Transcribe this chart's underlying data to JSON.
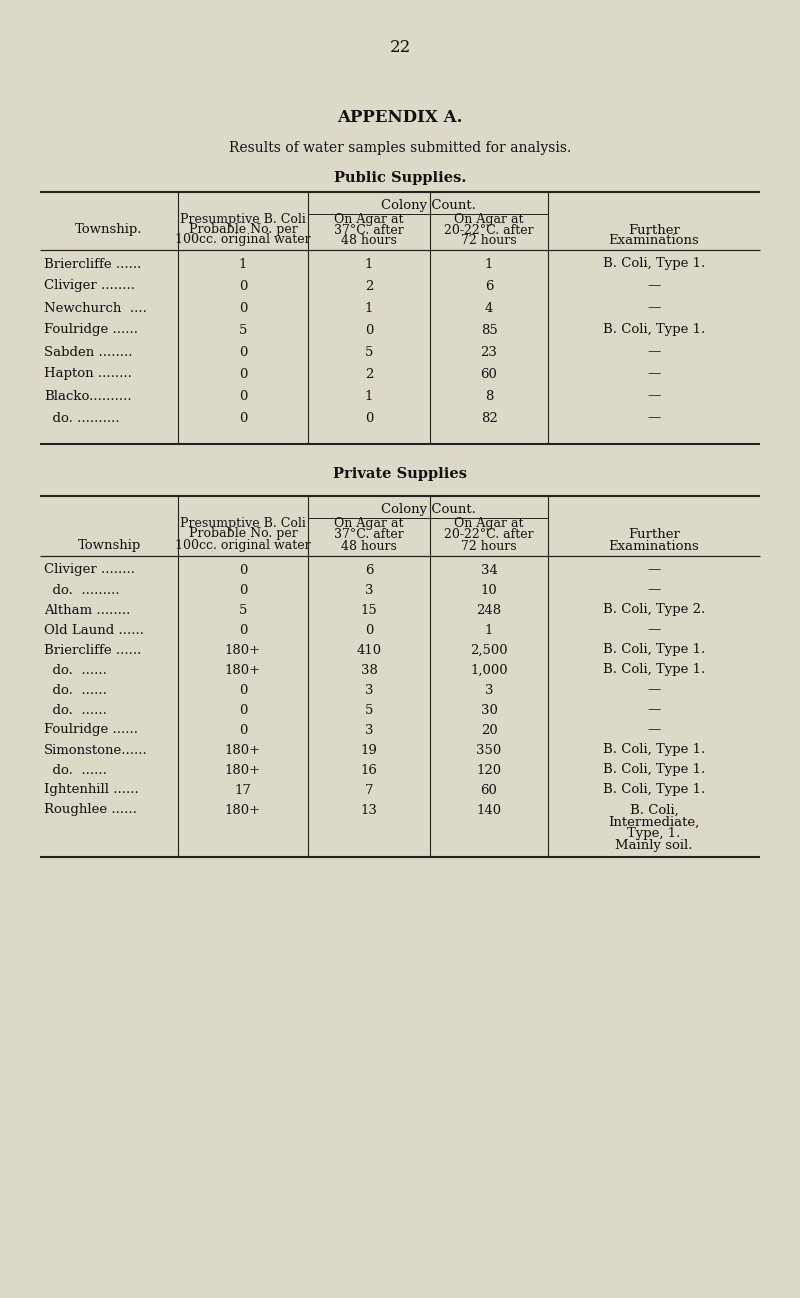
{
  "page_number": "22",
  "title": "APPENDIX A.",
  "subtitle": "Results of water samples submitted for analysis.",
  "section1_title": "Public Supplies.",
  "section2_title": "Private Supplies",
  "bg_color": "#ddd9c8",
  "public_rows": [
    [
      "Briercliffe ......",
      "1",
      "1",
      "1",
      "B. Coli, Type 1."
    ],
    [
      "Cliviger ........",
      "0",
      "2",
      "6",
      "—"
    ],
    [
      "Newchurch  ....",
      "0",
      "1",
      "4",
      "—"
    ],
    [
      "Foulridge ......",
      "5",
      "0",
      "85",
      "B. Coli, Type 1."
    ],
    [
      "Sabden ........",
      "0",
      "5",
      "23",
      "—"
    ],
    [
      "Hapton ........",
      "0",
      "2",
      "60",
      "—"
    ],
    [
      "Blacko..........",
      "0",
      "1",
      "8",
      "—"
    ],
    [
      "  do. ..........",
      "0",
      "0",
      "82",
      "—"
    ]
  ],
  "private_rows": [
    [
      "Cliviger ........",
      "0",
      "6",
      "34",
      "—"
    ],
    [
      "  do.  .........",
      "0",
      "3",
      "10",
      "—"
    ],
    [
      "Altham ........",
      "5",
      "15",
      "248",
      "B. Coli, Type 2."
    ],
    [
      "Old Laund ......",
      "0",
      "0",
      "1",
      "—"
    ],
    [
      "Briercliffe ......",
      "180+",
      "410",
      "2,500",
      "B. Coli, Type 1."
    ],
    [
      "  do.  ......",
      "180+",
      "38",
      "1,000",
      "B. Coli, Type 1."
    ],
    [
      "  do.  ......",
      "0",
      "3",
      "3",
      "—"
    ],
    [
      "  do.  ......",
      "0",
      "5",
      "30",
      "—"
    ],
    [
      "Foulridge ......",
      "0",
      "3",
      "20",
      "—"
    ],
    [
      "Simonstone......",
      "180+",
      "19",
      "350",
      "B. Coli, Type 1."
    ],
    [
      "  do.  ......",
      "180+",
      "16",
      "120",
      "B. Coli, Type 1."
    ],
    [
      "Ightenhill ......",
      "17",
      "7",
      "60",
      "B. Coli, Type 1."
    ],
    [
      "Roughlee ......",
      "180+",
      "13",
      "140",
      "B. Coli,\nIntermediate,\nType, 1.\nMainly soil."
    ]
  ]
}
